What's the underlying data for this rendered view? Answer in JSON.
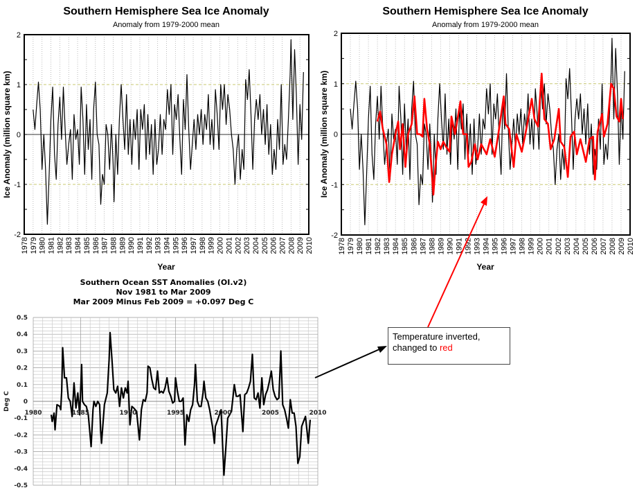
{
  "chart_data": [
    {
      "type": "line",
      "title": "Southern Hemisphere Sea Ice Anomaly",
      "subtitle": "Anomaly from 1979-2000 mean",
      "xlabel": "Year",
      "ylabel": "Ice Anomaly (million square km)",
      "xlim": [
        1978,
        2010
      ],
      "ylim": [
        -2,
        2
      ],
      "xticks": [
        1978,
        1979,
        1980,
        1981,
        1982,
        1983,
        1984,
        1985,
        1986,
        1987,
        1988,
        1989,
        1990,
        1991,
        1992,
        1993,
        1994,
        1995,
        1996,
        1997,
        1998,
        1999,
        2000,
        2001,
        2002,
        2003,
        2004,
        2005,
        2006,
        2007,
        2008,
        2009,
        2010
      ],
      "yticks": [
        2,
        1,
        0,
        -1,
        -2
      ],
      "grid": "vertical dotted per year, dashed reference at ±1",
      "series": [
        {
          "color": "#000000",
          "x": [
            1979.0,
            1979.2,
            1979.4,
            1979.6,
            1979.8,
            1980.0,
            1980.2,
            1980.4,
            1980.6,
            1980.8,
            1981.0,
            1981.2,
            1981.4,
            1981.6,
            1981.8,
            1982.0,
            1982.2,
            1982.4,
            1982.6,
            1982.8,
            1983.0,
            1983.2,
            1983.4,
            1983.6,
            1983.8,
            1984.0,
            1984.2,
            1984.4,
            1984.6,
            1984.8,
            1985.0,
            1985.2,
            1985.4,
            1985.6,
            1985.8,
            1986.0,
            1986.2,
            1986.4,
            1986.6,
            1986.8,
            1987.0,
            1987.2,
            1987.4,
            1987.6,
            1987.8,
            1988.0,
            1988.1,
            1988.3,
            1988.5,
            1988.7,
            1988.9,
            1989.1,
            1989.3,
            1989.5,
            1989.7,
            1989.9,
            1990.1,
            1990.3,
            1990.5,
            1990.7,
            1990.9,
            1991.1,
            1991.3,
            1991.5,
            1991.7,
            1991.9,
            1992.1,
            1992.3,
            1992.5,
            1992.7,
            1992.9,
            1993.1,
            1993.3,
            1993.5,
            1993.7,
            1993.9,
            1994.1,
            1994.3,
            1994.5,
            1994.7,
            1994.9,
            1995.1,
            1995.3,
            1995.5,
            1995.7,
            1995.9,
            1996.1,
            1996.3,
            1996.5,
            1996.7,
            1996.9,
            1997.1,
            1997.3,
            1997.5,
            1997.7,
            1997.9,
            1998.1,
            1998.3,
            1998.5,
            1998.7,
            1998.9,
            1999.1,
            1999.3,
            1999.5,
            1999.7,
            1999.9,
            2000.1,
            2000.3,
            2000.5,
            2000.7,
            2000.9,
            2001.1,
            2001.3,
            2001.5,
            2001.7,
            2001.9,
            2002.1,
            2002.3,
            2002.5,
            2002.7,
            2002.9,
            2003.1,
            2003.3,
            2003.5,
            2003.7,
            2003.9,
            2004.1,
            2004.3,
            2004.5,
            2004.7,
            2004.9,
            2005.1,
            2005.3,
            2005.5,
            2005.7,
            2005.9,
            2006.1,
            2006.3,
            2006.5,
            2006.7,
            2006.9,
            2007.1,
            2007.3,
            2007.5,
            2007.7,
            2007.9,
            2008.0,
            2008.2,
            2008.4,
            2008.6,
            2008.8,
            2009.0,
            2009.2,
            2009.4
          ],
          "y": [
            0.5,
            0.1,
            0.6,
            1.05,
            0.5,
            -0.7,
            0.0,
            -0.7,
            -1.8,
            -0.8,
            0.3,
            0.95,
            -0.4,
            -0.9,
            0.2,
            0.75,
            -0.1,
            0.95,
            0.1,
            -0.6,
            -0.2,
            0.1,
            -0.9,
            0.4,
            -0.1,
            0.1,
            -0.6,
            0.95,
            0.3,
            -0.8,
            0.6,
            -0.3,
            0.3,
            -0.9,
            0.5,
            1.05,
            0.0,
            -0.2,
            -1.4,
            -0.8,
            -1.0,
            0.2,
            0.0,
            -0.7,
            0.2,
            -0.6,
            -1.35,
            0.0,
            -0.8,
            0.3,
            1.0,
            0.3,
            -0.3,
            0.8,
            -0.4,
            0.3,
            -0.6,
            0.3,
            -0.1,
            0.5,
            -0.7,
            0.5,
            0.1,
            0.6,
            -0.5,
            0.4,
            -0.4,
            0.2,
            -0.8,
            0.3,
            -0.6,
            -0.3,
            0.4,
            -0.4,
            0.3,
            0.1,
            0.9,
            0.4,
            1.0,
            -0.4,
            0.6,
            0.3,
            0.8,
            -0.1,
            -0.8,
            0.7,
            0.1,
            1.2,
            0.1,
            -0.7,
            -0.2,
            0.3,
            -0.3,
            0.4,
            0.0,
            0.5,
            -0.2,
            0.4,
            0.1,
            0.8,
            -0.2,
            0.3,
            -0.3,
            0.9,
            0.4,
            -0.3,
            1.0,
            0.5,
            1.0,
            0.2,
            0.8,
            0.5,
            0.0,
            -0.3,
            -1.0,
            -0.3,
            0.0,
            -0.9,
            -0.3,
            -0.7,
            1.1,
            0.7,
            1.3,
            0.4,
            -0.7,
            0.3,
            0.7,
            0.3,
            0.8,
            0.0,
            0.5,
            -0.2,
            0.6,
            -0.4,
            0.2,
            -0.8,
            -0.3,
            -0.7,
            0.3,
            -0.3,
            1.0,
            -0.6,
            -0.2,
            -0.5,
            0.3,
            1.2,
            1.9,
            0.3,
            1.7,
            0.8,
            -0.6,
            0.6,
            -0.1,
            1.25
          ]
        }
      ]
    },
    {
      "type": "line",
      "title": "Southern Hemisphere Sea Ice Anomaly",
      "subtitle": "Anomaly from 1979-2000 mean",
      "xlabel": "Year",
      "ylabel": "Ice Anomaly (million square km)",
      "xlim": [
        1978,
        2010
      ],
      "ylim": [
        -2,
        2
      ],
      "xticks": [
        1978,
        1979,
        1980,
        1981,
        1982,
        1983,
        1984,
        1985,
        1986,
        1987,
        1988,
        1989,
        1990,
        1991,
        1992,
        1993,
        1994,
        1995,
        1996,
        1997,
        1998,
        1999,
        2000,
        2001,
        2002,
        2003,
        2004,
        2005,
        2006,
        2007,
        2008,
        2009,
        2010
      ],
      "yticks": [
        2,
        1,
        0,
        -1,
        -2
      ],
      "grid": "vertical dotted per year, dashed reference at ±1",
      "overlay_series_color": "#ff0000",
      "overlay": {
        "x": [
          1982.0,
          1982.3,
          1982.6,
          1983.0,
          1983.3,
          1983.6,
          1984.0,
          1984.3,
          1984.5,
          1984.8,
          1985.1,
          1985.4,
          1985.8,
          1986.1,
          1986.4,
          1986.7,
          1987.0,
          1987.2,
          1987.5,
          1987.8,
          1988.0,
          1988.2,
          1988.4,
          1988.7,
          1989.0,
          1989.3,
          1989.6,
          1990.0,
          1990.2,
          1990.6,
          1991.2,
          1991.5,
          1991.9,
          1992.1,
          1992.4,
          1992.8,
          1993.1,
          1993.5,
          1994.1,
          1994.5,
          1995.0,
          1995.4,
          1996.0,
          1996.2,
          1996.6,
          1997.1,
          1997.4,
          1998.0,
          1998.4,
          1999.1,
          1999.4,
          1999.8,
          2000.2,
          2000.5,
          2000.9,
          2001.2,
          2001.6,
          2002.1,
          2002.3,
          2002.7,
          2003.1,
          2003.4,
          2003.8,
          2004.1,
          2004.5,
          2005.1,
          2005.5,
          2005.9,
          2006.1,
          2006.4,
          2006.9,
          2007.1,
          2007.5,
          2007.9,
          2008.2,
          2008.5,
          2008.8,
          2009.0,
          2009.2
        ],
        "y": [
          0.25,
          0.45,
          0.1,
          -0.2,
          -0.95,
          -0.4,
          0.0,
          0.25,
          -0.3,
          0.2,
          -0.65,
          0.0,
          0.2,
          0.75,
          0.0,
          0.0,
          -0.05,
          0.7,
          0.1,
          -0.2,
          -0.7,
          -1.2,
          -0.7,
          -0.15,
          -0.3,
          -0.15,
          -0.25,
          -0.35,
          0.35,
          0.0,
          0.65,
          0.0,
          0.0,
          -0.65,
          -0.55,
          -0.2,
          -0.5,
          -0.2,
          -0.4,
          -0.1,
          -0.45,
          0.0,
          0.75,
          0.2,
          0.1,
          -0.65,
          0.0,
          -0.35,
          0.0,
          0.7,
          0.3,
          0.15,
          1.2,
          0.3,
          0.2,
          -0.3,
          -0.1,
          0.5,
          -0.15,
          -0.25,
          -0.85,
          -0.05,
          0.05,
          -0.4,
          -0.1,
          -0.55,
          -0.1,
          -0.05,
          -0.9,
          0.05,
          0.4,
          -0.05,
          0.2,
          1.0,
          0.9,
          0.35,
          0.25,
          0.7,
          0.3
        ]
      }
    },
    {
      "type": "line",
      "title": "Southern Ocean SST Anomalies (OI.v2)",
      "subtitle": "Nov 1981 to Mar 2009",
      "subtitle2": "Mar 2009 Minus Feb 2009 = +0.097 Deg C",
      "ylabel": "Deg C",
      "xlim": [
        1980,
        2010
      ],
      "ylim": [
        -0.5,
        0.5
      ],
      "xticks": [
        1980,
        1985,
        1990,
        1995,
        2000,
        2005,
        2010
      ],
      "yticks": [
        "0.5",
        "0.4",
        "0.3",
        "0.2",
        "0.1",
        "0",
        "-0.1",
        "-0.2",
        "-0.3",
        "-0.4",
        "-0.5"
      ],
      "grid": "on",
      "series": [
        {
          "color": "#000000",
          "x": [
            1981.9,
            1982.0,
            1982.2,
            1982.3,
            1982.5,
            1982.8,
            1982.9,
            1983.0,
            1983.1,
            1983.3,
            1983.5,
            1983.7,
            1983.9,
            1984.1,
            1984.3,
            1984.5,
            1984.7,
            1984.9,
            1985.1,
            1985.2,
            1985.4,
            1985.6,
            1985.8,
            1986.1,
            1986.3,
            1986.4,
            1986.6,
            1986.8,
            1987.0,
            1987.1,
            1987.2,
            1987.5,
            1987.8,
            1988.0,
            1988.1,
            1988.3,
            1988.5,
            1988.7,
            1988.9,
            1989.1,
            1989.3,
            1989.5,
            1989.7,
            1989.9,
            1990.0,
            1990.2,
            1990.4,
            1990.6,
            1990.9,
            1991.2,
            1991.4,
            1991.6,
            1991.8,
            1992.0,
            1992.1,
            1992.3,
            1992.5,
            1992.7,
            1992.9,
            1993.1,
            1993.3,
            1993.5,
            1993.7,
            1993.9,
            1994.1,
            1994.3,
            1994.5,
            1994.7,
            1994.9,
            1995.0,
            1995.2,
            1995.4,
            1995.6,
            1995.8,
            1996.0,
            1996.2,
            1996.4,
            1996.6,
            1996.8,
            1997.0,
            1997.1,
            1997.3,
            1997.5,
            1997.7,
            1997.9,
            1998.0,
            1998.2,
            1998.4,
            1998.6,
            1998.9,
            1999.1,
            1999.2,
            1999.5,
            1999.8,
            2000.1,
            2000.3,
            2000.5,
            2000.7,
            2000.9,
            2001.2,
            2001.4,
            2001.6,
            2001.8,
            2002.1,
            2002.3,
            2002.5,
            2002.7,
            2002.9,
            2003.1,
            2003.3,
            2003.5,
            2003.7,
            2003.9,
            2004.1,
            2004.3,
            2004.5,
            2004.7,
            2004.9,
            2005.1,
            2005.3,
            2005.5,
            2005.7,
            2005.9,
            2006.1,
            2006.3,
            2006.5,
            2006.7,
            2006.9,
            2007.1,
            2007.3,
            2007.5,
            2007.7,
            2007.9,
            2008.1,
            2008.3,
            2008.5,
            2008.7,
            2009.0,
            2009.2
          ],
          "y": [
            -0.08,
            -0.12,
            -0.07,
            -0.17,
            -0.02,
            -0.03,
            -0.05,
            0.06,
            0.32,
            0.14,
            0.14,
            0.02,
            0.0,
            -0.09,
            0.11,
            -0.04,
            0.05,
            -0.08,
            0.22,
            0.0,
            -0.02,
            -0.03,
            -0.08,
            -0.27,
            -0.05,
            0.0,
            -0.03,
            0.0,
            -0.02,
            -0.17,
            -0.25,
            -0.02,
            0.05,
            0.25,
            0.41,
            0.25,
            0.07,
            0.05,
            0.09,
            -0.03,
            0.08,
            0.02,
            0.08,
            0.05,
            0.12,
            -0.14,
            -0.03,
            -0.04,
            -0.06,
            -0.23,
            -0.05,
            0.01,
            0.0,
            0.05,
            0.21,
            0.2,
            0.13,
            0.08,
            0.07,
            0.18,
            0.05,
            0.06,
            0.05,
            0.08,
            0.14,
            0.06,
            0.03,
            -0.01,
            0.0,
            0.14,
            0.06,
            0.0,
            0.0,
            0.02,
            -0.26,
            -0.08,
            -0.12,
            -0.05,
            -0.02,
            0.1,
            0.22,
            0.0,
            -0.03,
            -0.03,
            0.05,
            0.12,
            0.02,
            0.0,
            -0.05,
            -0.15,
            -0.25,
            -0.15,
            -0.1,
            -0.05,
            -0.44,
            -0.28,
            -0.1,
            -0.08,
            -0.06,
            0.1,
            0.03,
            0.03,
            0.04,
            -0.18,
            0.04,
            0.05,
            0.08,
            0.12,
            0.28,
            0.02,
            0.01,
            0.05,
            -0.04,
            0.14,
            -0.02,
            0.04,
            0.07,
            0.12,
            0.18,
            0.07,
            0.03,
            0.01,
            0.02,
            0.3,
            -0.02,
            -0.05,
            -0.1,
            -0.16,
            0.01,
            -0.07,
            -0.07,
            -0.15,
            -0.37,
            -0.33,
            -0.15,
            -0.12,
            -0.09,
            -0.25,
            -0.11
          ]
        }
      ]
    }
  ],
  "annotation": {
    "line1": "Temperature inverted,",
    "line2_prefix": "changed to ",
    "line2_red": "red",
    "arrow_color": "#ff0000"
  }
}
